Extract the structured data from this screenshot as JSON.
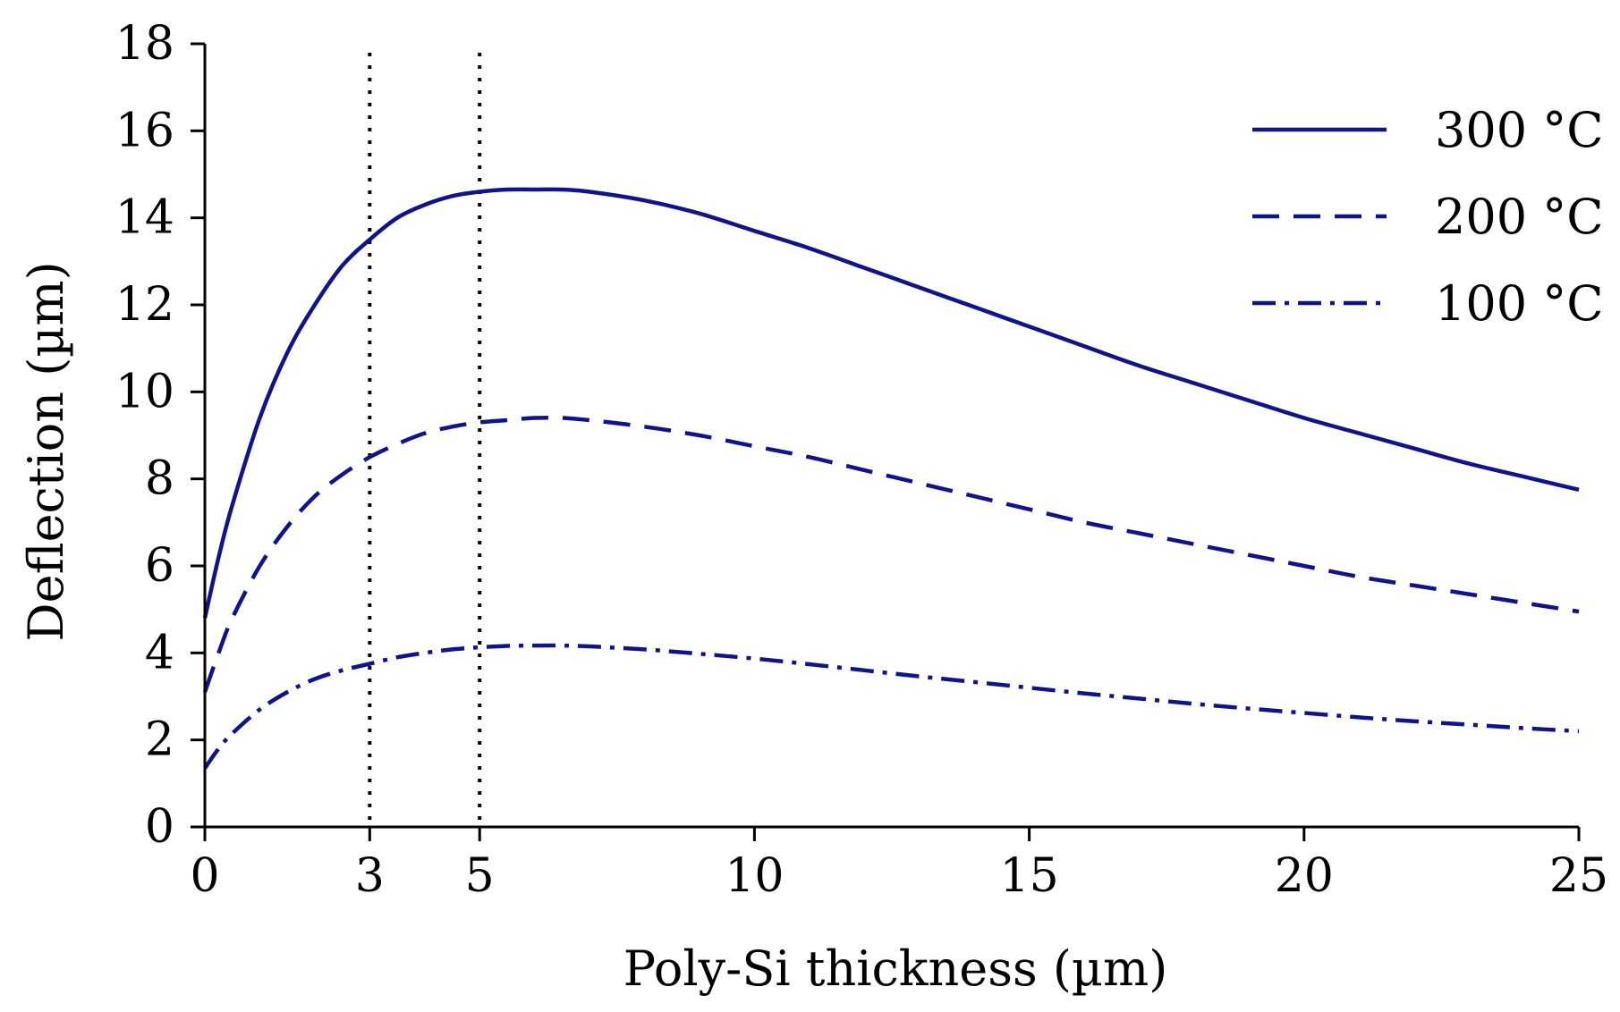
{
  "chart_data": {
    "type": "line",
    "title": "",
    "xlabel": "Poly-Si thickness (µm)",
    "ylabel": "Deflection (µm)",
    "xlim": [
      0,
      25
    ],
    "ylim": [
      0,
      18
    ],
    "xticks": [
      0,
      3,
      5,
      10,
      15,
      20,
      25
    ],
    "yticks": [
      0,
      2,
      4,
      6,
      8,
      10,
      12,
      14,
      16,
      18
    ],
    "grid": false,
    "legend_position": "top-right",
    "reference_lines": [
      {
        "axis": "x",
        "value": 3,
        "style": "dotted",
        "color": "#000000"
      },
      {
        "axis": "x",
        "value": 5,
        "style": "dotted",
        "color": "#000000"
      }
    ],
    "series": [
      {
        "name": "300 °C",
        "style": "solid",
        "color": "#10148c",
        "x": [
          0,
          0.25,
          0.5,
          1,
          1.5,
          2,
          2.5,
          3,
          3.5,
          4,
          4.5,
          5,
          5.5,
          6,
          6.5,
          7,
          8,
          9,
          10,
          11,
          12,
          13,
          14,
          15,
          16,
          17,
          18,
          19,
          20,
          21,
          22,
          23,
          24,
          25
        ],
        "y": [
          4.8,
          6.2,
          7.4,
          9.4,
          10.9,
          12.0,
          12.9,
          13.5,
          14.0,
          14.3,
          14.5,
          14.6,
          14.65,
          14.65,
          14.65,
          14.6,
          14.4,
          14.1,
          13.7,
          13.3,
          12.85,
          12.4,
          11.95,
          11.5,
          11.05,
          10.6,
          10.2,
          9.8,
          9.4,
          9.05,
          8.7,
          8.35,
          8.05,
          7.75
        ]
      },
      {
        "name": "200 °C",
        "style": "dashed",
        "color": "#10148c",
        "x": [
          0,
          0.25,
          0.5,
          1,
          1.5,
          2,
          2.5,
          3,
          3.5,
          4,
          4.5,
          5,
          5.5,
          6,
          6.5,
          7,
          8,
          9,
          10,
          11,
          12,
          13,
          14,
          15,
          16,
          17,
          18,
          19,
          20,
          21,
          22,
          23,
          24,
          25
        ],
        "y": [
          3.1,
          4.0,
          4.8,
          6.0,
          6.9,
          7.6,
          8.1,
          8.5,
          8.8,
          9.05,
          9.2,
          9.3,
          9.35,
          9.4,
          9.4,
          9.35,
          9.2,
          9.0,
          8.75,
          8.5,
          8.2,
          7.9,
          7.6,
          7.3,
          7.0,
          6.75,
          6.5,
          6.25,
          6.0,
          5.75,
          5.55,
          5.35,
          5.15,
          4.95
        ]
      },
      {
        "name": "100 °C",
        "style": "dash-dot",
        "color": "#10148c",
        "x": [
          0,
          0.25,
          0.5,
          1,
          1.5,
          2,
          2.5,
          3,
          3.5,
          4,
          4.5,
          5,
          5.5,
          6,
          6.5,
          7,
          8,
          9,
          10,
          11,
          12,
          13,
          14,
          15,
          16,
          17,
          18,
          19,
          20,
          21,
          22,
          23,
          24,
          25
        ],
        "y": [
          1.35,
          1.8,
          2.15,
          2.7,
          3.1,
          3.4,
          3.6,
          3.75,
          3.9,
          4.0,
          4.08,
          4.13,
          4.16,
          4.17,
          4.17,
          4.15,
          4.08,
          3.98,
          3.87,
          3.74,
          3.6,
          3.46,
          3.33,
          3.2,
          3.07,
          2.95,
          2.83,
          2.72,
          2.62,
          2.52,
          2.43,
          2.35,
          2.27,
          2.2
        ]
      }
    ]
  }
}
